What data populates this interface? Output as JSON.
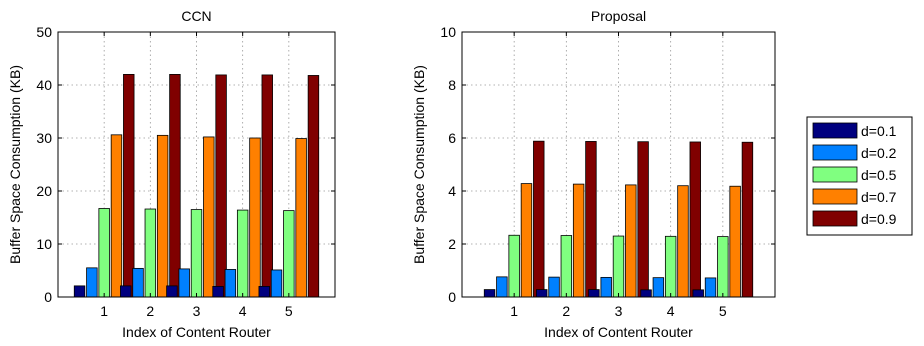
{
  "chart_data": [
    {
      "type": "bar",
      "title": "CCN",
      "xlabel": "Index of Content Router",
      "ylabel": "Buffer Space Consumption (KB)",
      "categories": [
        "1",
        "2",
        "3",
        "4",
        "5"
      ],
      "ylim": [
        0,
        50
      ],
      "yticks": [
        "0",
        "10",
        "20",
        "30",
        "40",
        "50"
      ],
      "grid": true,
      "series": [
        {
          "name": "d=0.1",
          "color": "#00007f",
          "values": [
            2.1,
            2.1,
            2.1,
            2.0,
            2.0
          ]
        },
        {
          "name": "d=0.2",
          "color": "#0080ff",
          "values": [
            5.5,
            5.4,
            5.3,
            5.2,
            5.1
          ]
        },
        {
          "name": "d=0.5",
          "color": "#80ff80",
          "values": [
            16.7,
            16.6,
            16.5,
            16.4,
            16.3
          ]
        },
        {
          "name": "d=0.7",
          "color": "#ff8000",
          "values": [
            30.6,
            30.5,
            30.2,
            30.0,
            29.9
          ]
        },
        {
          "name": "d=0.9",
          "color": "#800000",
          "values": [
            42.0,
            42.0,
            41.9,
            41.9,
            41.8
          ]
        }
      ]
    },
    {
      "type": "bar",
      "title": "Proposal",
      "xlabel": "Index of Content Router",
      "ylabel": "Buffer Space Consumption (KB)",
      "categories": [
        "1",
        "2",
        "3",
        "4",
        "5"
      ],
      "ylim": [
        0,
        10
      ],
      "yticks": [
        "0",
        "2",
        "4",
        "6",
        "8",
        "10"
      ],
      "grid": true,
      "series": [
        {
          "name": "d=0.1",
          "color": "#00007f",
          "values": [
            0.28,
            0.28,
            0.28,
            0.27,
            0.27
          ]
        },
        {
          "name": "d=0.2",
          "color": "#0080ff",
          "values": [
            0.76,
            0.75,
            0.74,
            0.73,
            0.72
          ]
        },
        {
          "name": "d=0.5",
          "color": "#80ff80",
          "values": [
            2.33,
            2.32,
            2.3,
            2.29,
            2.28
          ]
        },
        {
          "name": "d=0.7",
          "color": "#ff8000",
          "values": [
            4.28,
            4.26,
            4.23,
            4.2,
            4.18
          ]
        },
        {
          "name": "d=0.9",
          "color": "#800000",
          "values": [
            5.88,
            5.87,
            5.86,
            5.85,
            5.84
          ]
        }
      ]
    }
  ],
  "legend": {
    "placement": "right",
    "entries": [
      {
        "label": "d=0.1",
        "color": "#00007f"
      },
      {
        "label": "d=0.2",
        "color": "#0080ff"
      },
      {
        "label": "d=0.5",
        "color": "#80ff80"
      },
      {
        "label": "d=0.7",
        "color": "#ff8000"
      },
      {
        "label": "d=0.9",
        "color": "#800000"
      }
    ]
  }
}
